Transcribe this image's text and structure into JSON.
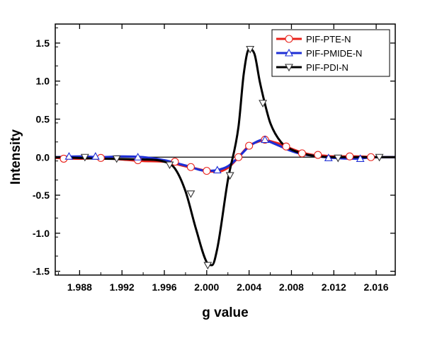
{
  "chart_data": {
    "type": "line",
    "title": "",
    "xlabel": "g value",
    "ylabel": "Intensity",
    "xlim": [
      1.9857,
      2.0178
    ],
    "ylim": [
      -1.55,
      1.75
    ],
    "xticks": [
      1.988,
      1.992,
      1.996,
      2.0,
      2.004,
      2.008,
      2.012,
      2.016
    ],
    "xtick_labels": [
      "1.988",
      "1.992",
      "1.996",
      "2.000",
      "2.004",
      "2.008",
      "2.012",
      "2.016"
    ],
    "yticks": [
      -1.5,
      -1.0,
      -0.5,
      0.0,
      0.5,
      1.0,
      1.5
    ],
    "ytick_labels": [
      "-1.5",
      "-1.0",
      "-0.5",
      "0.0",
      "0.5",
      "1.0",
      "1.5"
    ],
    "legend_position": "top-right",
    "grid": false,
    "series": [
      {
        "name": "PIF-PTE-N",
        "color": "#e8211a",
        "marker": "circle",
        "x": [
          1.9857,
          1.988,
          1.99,
          1.992,
          1.994,
          1.996,
          1.998,
          1.999,
          2.0,
          2.001,
          2.002,
          2.003,
          2.004,
          2.005,
          2.0055,
          2.006,
          2.007,
          2.008,
          2.009,
          2.01,
          2.011,
          2.012,
          2.014,
          2.016,
          2.0178
        ],
        "y": [
          -0.01,
          -0.02,
          -0.01,
          -0.03,
          -0.05,
          -0.06,
          -0.12,
          -0.15,
          -0.18,
          -0.19,
          -0.14,
          0.0,
          0.15,
          0.21,
          0.23,
          0.21,
          0.17,
          0.11,
          0.06,
          0.03,
          0.02,
          0.01,
          0.01,
          0.0,
          0.0
        ],
        "marker_x": [
          1.9865,
          1.99,
          1.9935,
          1.997,
          1.9985,
          2.0,
          2.003,
          2.004,
          2.0055,
          2.0075,
          2.009,
          2.0105,
          2.0135,
          2.0155
        ],
        "marker_y": [
          -0.02,
          -0.01,
          -0.04,
          -0.06,
          -0.13,
          -0.18,
          0.0,
          0.15,
          0.23,
          0.14,
          0.05,
          0.03,
          0.01,
          0.0
        ]
      },
      {
        "name": "PIF-PMIDE-N",
        "color": "#1e2fd6",
        "marker": "triangle-up",
        "x": [
          1.9857,
          1.988,
          1.99,
          1.992,
          1.994,
          1.996,
          1.998,
          2.0,
          2.001,
          2.002,
          2.003,
          2.004,
          2.005,
          2.0055,
          2.006,
          2.007,
          2.008,
          2.009,
          2.01,
          2.012,
          2.014,
          2.016,
          2.0178
        ],
        "y": [
          0.0,
          0.01,
          0.0,
          0.01,
          0.0,
          -0.04,
          -0.11,
          -0.18,
          -0.17,
          -0.12,
          0.0,
          0.14,
          0.22,
          0.23,
          0.2,
          0.14,
          0.08,
          0.04,
          0.02,
          -0.01,
          -0.02,
          0.0,
          0.0
        ],
        "marker_x": [
          1.987,
          1.9895,
          1.9935,
          2.001,
          2.0055,
          2.0115,
          2.0145
        ],
        "marker_y": [
          0.01,
          0.01,
          0.0,
          -0.17,
          0.23,
          -0.01,
          -0.02
        ]
      },
      {
        "name": "PIF-PDI-N",
        "color": "#000000",
        "marker": "triangle-down",
        "x": [
          1.9857,
          1.99,
          1.994,
          1.996,
          1.997,
          1.998,
          1.999,
          2.0,
          2.0005,
          2.001,
          2.002,
          2.003,
          2.0035,
          2.004,
          2.0045,
          2.005,
          2.0055,
          2.006,
          2.007,
          2.008,
          2.009,
          2.01,
          2.012,
          2.014,
          2.016,
          2.0178
        ],
        "y": [
          0.0,
          -0.02,
          -0.03,
          -0.06,
          -0.15,
          -0.45,
          -0.95,
          -1.38,
          -1.42,
          -1.2,
          -0.3,
          0.4,
          1.1,
          1.42,
          1.36,
          1.0,
          0.7,
          0.45,
          0.2,
          0.1,
          0.05,
          0.02,
          0.0,
          0.0,
          0.0,
          0.0
        ],
        "marker_x": [
          1.9885,
          1.9915,
          1.9965,
          1.9985,
          2.0001,
          2.0022,
          2.0041,
          2.0053,
          2.0124,
          2.0163
        ],
        "marker_y": [
          0.0,
          -0.02,
          -0.1,
          -0.48,
          -1.42,
          -0.24,
          1.42,
          0.71,
          -0.01,
          0.0
        ]
      }
    ]
  }
}
